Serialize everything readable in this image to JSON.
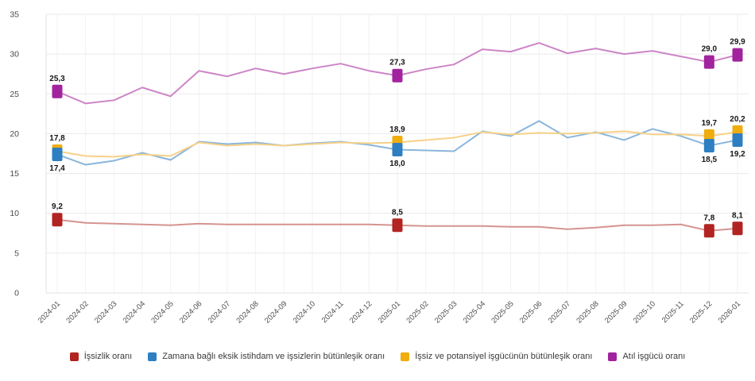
{
  "chart_data": {
    "type": "line",
    "title": "",
    "xlabel": "",
    "ylabel": "",
    "x": [
      "2024-01",
      "2024-02",
      "2024-03",
      "2024-04",
      "2024-05",
      "2024-06",
      "2024-07",
      "2024-08",
      "2024-09",
      "2024-10",
      "2024-11",
      "2024-12",
      "2025-01",
      "2025-02",
      "2025-03",
      "2025-04",
      "2025-05",
      "2025-06",
      "2025-07",
      "2025-08",
      "2025-09",
      "2025-10",
      "2025-11",
      "2025-12",
      "2026-01"
    ],
    "ylim": [
      0,
      35
    ],
    "yticks": [
      0,
      5,
      10,
      15,
      20,
      25,
      30,
      35
    ],
    "grid": true,
    "legend_position": "bottom",
    "decimal_separator": ",",
    "label_indices": [
      0,
      12,
      23,
      24
    ],
    "series": [
      {
        "name": "İşsizlik oranı",
        "marker_color": "#b22422",
        "line_color": "#d49490",
        "label_side": "above",
        "values": [
          9.2,
          8.8,
          8.7,
          8.6,
          8.5,
          8.7,
          8.6,
          8.6,
          8.6,
          8.6,
          8.6,
          8.6,
          8.5,
          8.4,
          8.4,
          8.4,
          8.3,
          8.3,
          8.0,
          8.2,
          8.5,
          8.5,
          8.6,
          7.8,
          8.1
        ],
        "point_labels": {
          "2024-01": "9,2",
          "2025-01": "8,5",
          "2025-12": "7,8",
          "2026-01": "8,1"
        }
      },
      {
        "name": "Zamana bağlı eksik istihdam ve işsizlerin bütünleşik oranı",
        "marker_color": "#2e7fc2",
        "line_color": "#8ab6dc",
        "label_side": "below",
        "values": [
          17.4,
          16.1,
          16.6,
          17.6,
          16.7,
          19.0,
          18.7,
          18.9,
          18.5,
          18.8,
          19.0,
          18.6,
          18.0,
          17.9,
          17.8,
          20.3,
          19.7,
          21.6,
          19.5,
          20.2,
          19.2,
          20.6,
          19.7,
          18.5,
          19.2
        ],
        "point_labels": {
          "2024-01": "17,4",
          "2025-01": "18,0",
          "2025-12": "18,5",
          "2026-01": "19,2"
        }
      },
      {
        "name": "İşsiz ve potansiyel işgücünün bütünleşik oranı",
        "marker_color": "#f0ad0e",
        "line_color": "#f6d188",
        "label_side": "above",
        "values": [
          17.8,
          17.2,
          17.1,
          17.4,
          17.2,
          18.9,
          18.5,
          18.7,
          18.5,
          18.7,
          18.9,
          18.8,
          18.9,
          19.2,
          19.5,
          20.2,
          19.9,
          20.1,
          20.0,
          20.1,
          20.3,
          19.9,
          19.9,
          19.7,
          20.2
        ],
        "point_labels": {
          "2024-01": "17,8",
          "2025-01": "18,9",
          "2025-12": "19,7",
          "2026-01": "20,2"
        }
      },
      {
        "name": "Atıl işgücü oranı",
        "marker_color": "#a2239e",
        "line_color": "#cd85c6",
        "label_side": "above",
        "values": [
          25.3,
          23.8,
          24.2,
          25.8,
          24.7,
          27.9,
          27.2,
          28.2,
          27.5,
          28.2,
          28.8,
          27.9,
          27.3,
          28.1,
          28.7,
          30.6,
          30.3,
          31.4,
          30.1,
          30.7,
          30.0,
          30.4,
          29.7,
          29.0,
          29.9
        ],
        "point_labels": {
          "2024-01": "25,3",
          "2025-01": "27,3",
          "2025-12": "29,0",
          "2026-01": "29,9"
        }
      }
    ]
  },
  "colors": {
    "background": "#ffffff",
    "grid_horizontal": "#e9e9e9",
    "grid_vertical": "#f2f2f2",
    "axis_line": "#e2e2e2",
    "axis_text": "#4d4d4d",
    "point_label_text": "#161616",
    "legend_text": "#3a3a3a"
  }
}
